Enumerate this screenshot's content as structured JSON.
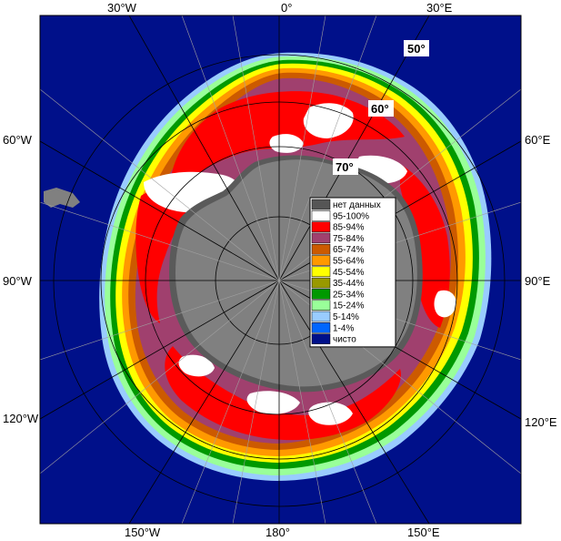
{
  "map": {
    "colors": {
      "ocean": "#00108a",
      "land": "#808080",
      "land_dark": "#5a5a5a",
      "frame": "#000000",
      "grid_light": "#a0a0a0",
      "grid_dark": "#000000"
    },
    "top_labels": [
      "30°W",
      "0°",
      "30°E"
    ],
    "bottom_labels": [
      "150°W",
      "180°",
      "150°E"
    ],
    "left_labels": [
      "60°W",
      "90°W",
      "120°W"
    ],
    "right_labels": [
      "60°E",
      "90°E",
      "120°E"
    ],
    "lat_labels": [
      "50°",
      "60°",
      "70°"
    ]
  },
  "legend": {
    "items": [
      {
        "label": "нет данных",
        "color": "#555555"
      },
      {
        "label": "95-100%",
        "color": "#ffffff"
      },
      {
        "label": "85-94%",
        "color": "#ff0000"
      },
      {
        "label": "75-84%",
        "color": "#a0406e"
      },
      {
        "label": "65-74%",
        "color": "#cc5a00"
      },
      {
        "label": "55-64%",
        "color": "#ff9900"
      },
      {
        "label": "45-54%",
        "color": "#ffff00"
      },
      {
        "label": "35-44%",
        "color": "#999900"
      },
      {
        "label": "25-34%",
        "color": "#009900"
      },
      {
        "label": "15-24%",
        "color": "#99ff99"
      },
      {
        "label": "5-14%",
        "color": "#99ccff"
      },
      {
        "label": "1-4%",
        "color": "#0066ff"
      },
      {
        "label": "чисто",
        "color": "#00108a"
      }
    ]
  }
}
